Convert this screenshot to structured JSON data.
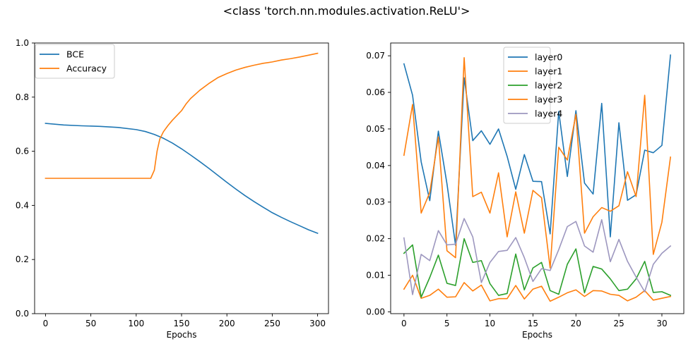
{
  "figure": {
    "suptitle": "<class 'torch.nn.modules.activation.ReLU'>"
  },
  "chart_data": [
    {
      "type": "line",
      "title": "",
      "xlabel": "Epochs",
      "ylabel": "",
      "xlim": [
        -12,
        312
      ],
      "ylim": [
        0.0,
        1.0
      ],
      "xticks": [
        0,
        50,
        100,
        150,
        200,
        250,
        300
      ],
      "yticks": [
        0.0,
        0.2,
        0.4,
        0.6,
        0.8,
        1.0
      ],
      "ytick_decimals": 1,
      "grid": false,
      "legend_position": "top-left",
      "series": [
        {
          "name": "BCE",
          "color": "#1f77b4",
          "x": [
            0,
            20,
            40,
            60,
            80,
            100,
            110,
            120,
            130,
            140,
            150,
            160,
            170,
            180,
            190,
            200,
            210,
            220,
            230,
            240,
            250,
            260,
            270,
            280,
            290,
            300
          ],
          "y": [
            0.703,
            0.697,
            0.694,
            0.692,
            0.688,
            0.68,
            0.673,
            0.662,
            0.648,
            0.63,
            0.609,
            0.586,
            0.562,
            0.537,
            0.511,
            0.485,
            0.46,
            0.436,
            0.414,
            0.393,
            0.373,
            0.356,
            0.34,
            0.325,
            0.31,
            0.297
          ]
        },
        {
          "name": "Accuracy",
          "color": "#ff7f0e",
          "x": [
            0,
            50,
            100,
            116,
            120,
            123,
            126,
            130,
            135,
            140,
            150,
            155,
            160,
            170,
            180,
            190,
            200,
            210,
            220,
            230,
            240,
            250,
            260,
            270,
            280,
            290,
            300
          ],
          "y": [
            0.5,
            0.5,
            0.5,
            0.5,
            0.53,
            0.6,
            0.645,
            0.672,
            0.695,
            0.715,
            0.75,
            0.775,
            0.795,
            0.825,
            0.85,
            0.872,
            0.887,
            0.9,
            0.91,
            0.918,
            0.925,
            0.93,
            0.937,
            0.942,
            0.948,
            0.955,
            0.962
          ]
        }
      ]
    },
    {
      "type": "line",
      "title": "",
      "xlabel": "Epochs",
      "ylabel": "",
      "xlim": [
        -1.55,
        32.55
      ],
      "ylim": [
        -0.0005,
        0.0735
      ],
      "xticks": [
        0,
        5,
        10,
        15,
        20,
        25,
        30
      ],
      "yticks": [
        0.0,
        0.01,
        0.02,
        0.03,
        0.04,
        0.05,
        0.06,
        0.07
      ],
      "ytick_decimals": 2,
      "grid": false,
      "legend_position": "top-center",
      "series": [
        {
          "name": "layer0",
          "color": "#1f77b4",
          "y": [
            0.0678,
            0.0592,
            0.041,
            0.0304,
            0.0494,
            0.035,
            0.0182,
            0.064,
            0.0468,
            0.0495,
            0.0458,
            0.05,
            0.0425,
            0.0335,
            0.043,
            0.0357,
            0.0356,
            0.0213,
            0.0548,
            0.037,
            0.055,
            0.0352,
            0.0322,
            0.057,
            0.0205,
            0.0517,
            0.0305,
            0.032,
            0.0442,
            0.0435,
            0.0455,
            0.0702
          ]
        },
        {
          "name": "layer1",
          "color": "#ff7f0e",
          "y": [
            0.0062,
            0.01,
            0.0037,
            0.0045,
            0.0062,
            0.004,
            0.0041,
            0.008,
            0.0057,
            0.0073,
            0.003,
            0.0036,
            0.0036,
            0.0072,
            0.0035,
            0.0062,
            0.007,
            0.0029,
            0.004,
            0.0052,
            0.006,
            0.0042,
            0.0058,
            0.0057,
            0.0048,
            0.0045,
            0.003,
            0.004,
            0.0058,
            0.0032,
            0.0037,
            0.0042
          ]
        },
        {
          "name": "layer2",
          "color": "#2ca02c",
          "y": [
            0.016,
            0.0183,
            0.004,
            0.0094,
            0.0155,
            0.0078,
            0.0072,
            0.02,
            0.0135,
            0.014,
            0.0077,
            0.0045,
            0.005,
            0.0158,
            0.006,
            0.012,
            0.0135,
            0.0058,
            0.0048,
            0.013,
            0.0172,
            0.0052,
            0.0124,
            0.0117,
            0.009,
            0.0058,
            0.0062,
            0.009,
            0.0138,
            0.0053,
            0.0055,
            0.0045
          ]
        },
        {
          "name": "layer3",
          "color": "#ff7f0e",
          "y": [
            0.0428,
            0.0567,
            0.027,
            0.0326,
            0.0478,
            0.0167,
            0.0148,
            0.0695,
            0.0315,
            0.0327,
            0.027,
            0.038,
            0.0205,
            0.0328,
            0.0215,
            0.0332,
            0.0312,
            0.012,
            0.045,
            0.0415,
            0.054,
            0.0215,
            0.026,
            0.0285,
            0.0275,
            0.029,
            0.0383,
            0.0315,
            0.0592,
            0.0157,
            0.0245,
            0.0423
          ]
        },
        {
          "name": "layer4",
          "color": "#9d97bf",
          "y": [
            0.0202,
            0.0047,
            0.0157,
            0.014,
            0.0222,
            0.0183,
            0.0185,
            0.0255,
            0.0205,
            0.008,
            0.0135,
            0.0165,
            0.0168,
            0.0203,
            0.0148,
            0.0083,
            0.0118,
            0.0113,
            0.017,
            0.0233,
            0.0247,
            0.018,
            0.0163,
            0.0252,
            0.0137,
            0.0198,
            0.0138,
            0.0095,
            0.0055,
            0.013,
            0.016,
            0.018
          ]
        }
      ]
    }
  ]
}
